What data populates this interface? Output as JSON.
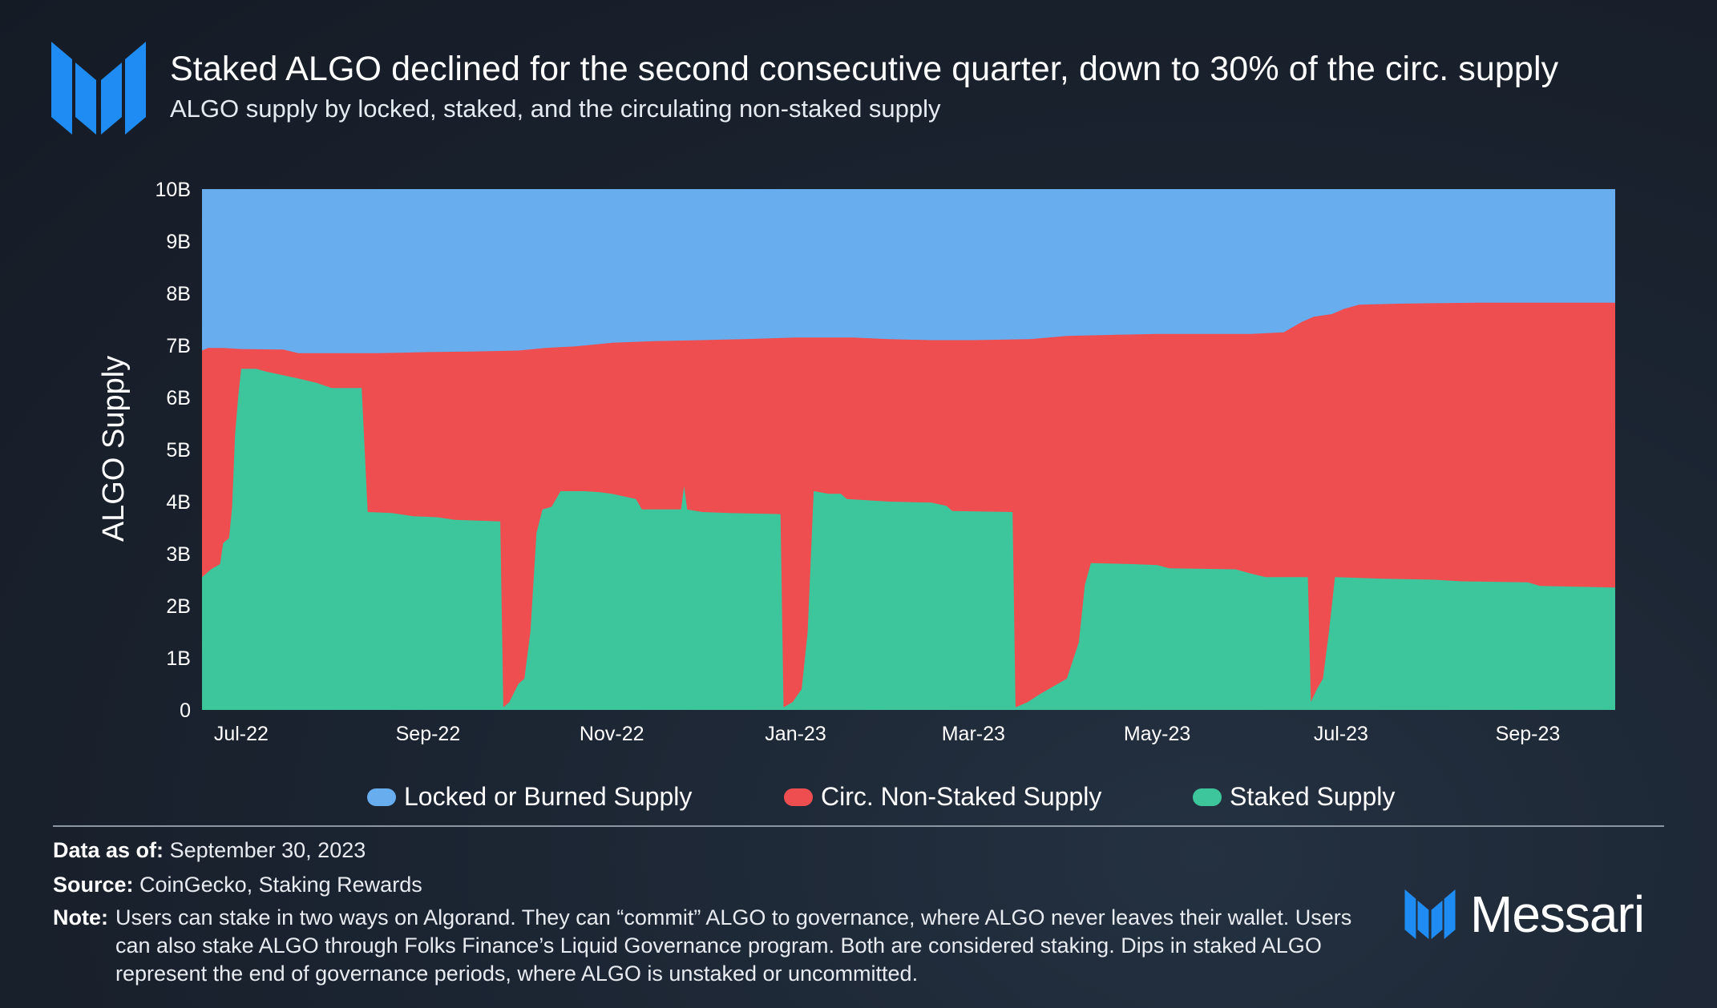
{
  "header": {
    "title": "Staked ALGO declined for the second consecutive quarter, down to 30% of the circ. supply",
    "subtitle": "ALGO supply by locked, staked, and the circulating non-staked supply"
  },
  "colors": {
    "locked": "#68adee",
    "circ_non_staked": "#ee4e50",
    "staked": "#3dc69c",
    "brand": "#1e8cf2"
  },
  "chart_data": {
    "type": "area",
    "stacked": true,
    "title": "Staked ALGO declined for the second consecutive quarter, down to 30% of the circ. supply",
    "subtitle": "ALGO supply by locked, staked, and the circulating non-staked supply",
    "ylabel": "ALGO Supply",
    "xlabel": "",
    "ylim": [
      0,
      10000000000
    ],
    "yticks": [
      0,
      1000000000,
      2000000000,
      3000000000,
      4000000000,
      5000000000,
      6000000000,
      7000000000,
      8000000000,
      9000000000,
      10000000000
    ],
    "ytick_labels": [
      "0",
      "1B",
      "2B",
      "3B",
      "4B",
      "5B",
      "6B",
      "7B",
      "8B",
      "9B",
      "10B"
    ],
    "xlim": [
      "2022-06-18",
      "2023-09-30"
    ],
    "xticks": [
      "2022-07-01",
      "2022-09-01",
      "2022-11-01",
      "2023-01-01",
      "2023-03-01",
      "2023-05-01",
      "2023-07-01",
      "2023-09-01"
    ],
    "xtick_labels": [
      "Jul-22",
      "Sep-22",
      "Nov-22",
      "Jan-23",
      "Mar-23",
      "May-23",
      "Jul-23",
      "Sep-23"
    ],
    "legend_position": "bottom",
    "grid": false,
    "series": [
      {
        "name": "Staked Supply",
        "color_key": "staked",
        "points": [
          [
            "2022-06-18",
            2.55
          ],
          [
            "2022-06-21",
            2.7
          ],
          [
            "2022-06-24",
            2.8
          ],
          [
            "2022-06-25",
            3.2
          ],
          [
            "2022-06-27",
            3.3
          ],
          [
            "2022-06-28",
            3.9
          ],
          [
            "2022-06-29",
            5.3
          ],
          [
            "2022-06-30",
            6.0
          ],
          [
            "2022-07-01",
            6.55
          ],
          [
            "2022-07-06",
            6.55
          ],
          [
            "2022-07-09",
            6.5
          ],
          [
            "2022-07-13",
            6.45
          ],
          [
            "2022-07-21",
            6.35
          ],
          [
            "2022-07-26",
            6.28
          ],
          [
            "2022-07-31",
            6.18
          ],
          [
            "2022-08-10",
            6.18
          ],
          [
            "2022-08-12",
            3.8
          ],
          [
            "2022-08-20",
            3.78
          ],
          [
            "2022-08-27",
            3.72
          ],
          [
            "2022-09-04",
            3.7
          ],
          [
            "2022-09-10",
            3.65
          ],
          [
            "2022-09-25",
            3.62
          ],
          [
            "2022-09-26",
            0.05
          ],
          [
            "2022-09-28",
            0.15
          ],
          [
            "2022-10-01",
            0.5
          ],
          [
            "2022-10-03",
            0.6
          ],
          [
            "2022-10-05",
            1.5
          ],
          [
            "2022-10-07",
            3.4
          ],
          [
            "2022-10-09",
            3.85
          ],
          [
            "2022-10-12",
            3.9
          ],
          [
            "2022-10-15",
            4.2
          ],
          [
            "2022-10-23",
            4.2
          ],
          [
            "2022-10-28",
            4.18
          ],
          [
            "2022-11-01",
            4.15
          ],
          [
            "2022-11-05",
            4.1
          ],
          [
            "2022-11-09",
            4.05
          ],
          [
            "2022-11-11",
            3.85
          ],
          [
            "2022-11-24",
            3.85
          ],
          [
            "2022-11-25",
            4.3
          ],
          [
            "2022-11-26",
            3.85
          ],
          [
            "2022-12-01",
            3.8
          ],
          [
            "2022-12-10",
            3.78
          ],
          [
            "2022-12-27",
            3.76
          ],
          [
            "2022-12-28",
            0.05
          ],
          [
            "2022-12-31",
            0.15
          ],
          [
            "2023-01-03",
            0.4
          ],
          [
            "2023-01-05",
            1.5
          ],
          [
            "2023-01-07",
            4.2
          ],
          [
            "2023-01-12",
            4.15
          ],
          [
            "2023-01-16",
            4.15
          ],
          [
            "2023-01-18",
            4.05
          ],
          [
            "2023-02-01",
            4.0
          ],
          [
            "2023-02-15",
            3.98
          ],
          [
            "2023-02-20",
            3.92
          ],
          [
            "2023-02-22",
            3.82
          ],
          [
            "2023-03-14",
            3.8
          ],
          [
            "2023-03-15",
            0.05
          ],
          [
            "2023-03-19",
            0.15
          ],
          [
            "2023-03-23",
            0.3
          ],
          [
            "2023-04-01",
            0.6
          ],
          [
            "2023-04-05",
            1.3
          ],
          [
            "2023-04-07",
            2.4
          ],
          [
            "2023-04-09",
            2.82
          ],
          [
            "2023-04-23",
            2.8
          ],
          [
            "2023-05-01",
            2.78
          ],
          [
            "2023-05-05",
            2.72
          ],
          [
            "2023-05-27",
            2.7
          ],
          [
            "2023-06-01",
            2.62
          ],
          [
            "2023-06-06",
            2.55
          ],
          [
            "2023-06-20",
            2.55
          ],
          [
            "2023-06-21",
            0.15
          ],
          [
            "2023-06-23",
            0.4
          ],
          [
            "2023-06-25",
            0.6
          ],
          [
            "2023-06-27",
            1.5
          ],
          [
            "2023-06-29",
            2.55
          ],
          [
            "2023-07-15",
            2.52
          ],
          [
            "2023-08-01",
            2.5
          ],
          [
            "2023-08-10",
            2.47
          ],
          [
            "2023-09-01",
            2.45
          ],
          [
            "2023-09-05",
            2.38
          ],
          [
            "2023-09-30",
            2.35
          ]
        ]
      },
      {
        "name": "Circ. Non-Staked Supply",
        "color_key": "circ_non_staked",
        "points_are_cumulative_top": true,
        "points": [
          [
            "2022-06-18",
            6.9
          ],
          [
            "2022-06-20",
            6.95
          ],
          [
            "2022-06-25",
            6.95
          ],
          [
            "2022-07-01",
            6.93
          ],
          [
            "2022-07-15",
            6.92
          ],
          [
            "2022-07-20",
            6.85
          ],
          [
            "2022-08-01",
            6.85
          ],
          [
            "2022-08-15",
            6.85
          ],
          [
            "2022-09-01",
            6.87
          ],
          [
            "2022-09-15",
            6.88
          ],
          [
            "2022-10-01",
            6.9
          ],
          [
            "2022-10-10",
            6.95
          ],
          [
            "2022-10-20",
            6.98
          ],
          [
            "2022-11-01",
            7.05
          ],
          [
            "2022-11-15",
            7.08
          ],
          [
            "2022-12-01",
            7.1
          ],
          [
            "2022-12-15",
            7.12
          ],
          [
            "2023-01-01",
            7.15
          ],
          [
            "2023-01-20",
            7.15
          ],
          [
            "2023-02-01",
            7.12
          ],
          [
            "2023-02-15",
            7.1
          ],
          [
            "2023-03-01",
            7.1
          ],
          [
            "2023-03-20",
            7.12
          ],
          [
            "2023-04-01",
            7.18
          ],
          [
            "2023-04-15",
            7.2
          ],
          [
            "2023-05-01",
            7.22
          ],
          [
            "2023-05-15",
            7.22
          ],
          [
            "2023-06-01",
            7.22
          ],
          [
            "2023-06-12",
            7.25
          ],
          [
            "2023-06-18",
            7.45
          ],
          [
            "2023-06-22",
            7.55
          ],
          [
            "2023-06-28",
            7.6
          ],
          [
            "2023-07-02",
            7.7
          ],
          [
            "2023-07-07",
            7.78
          ],
          [
            "2023-07-20",
            7.8
          ],
          [
            "2023-08-15",
            7.82
          ],
          [
            "2023-09-01",
            7.82
          ],
          [
            "2023-09-30",
            7.82
          ]
        ]
      },
      {
        "name": "Locked or Burned Supply",
        "color_key": "locked",
        "points_are_cumulative_top": true,
        "points": [
          [
            "2022-06-18",
            10.0
          ],
          [
            "2023-09-30",
            10.0
          ]
        ]
      }
    ],
    "units": "billions (B)"
  },
  "legend": {
    "locked": "Locked or Burned Supply",
    "circ": "Circ. Non-Staked Supply",
    "staked": "Staked Supply"
  },
  "footer": {
    "data_label": "Data as of:",
    "data_value": "September 30, 2023",
    "source_label": "Source:",
    "source_value": "CoinGecko, Staking Rewards",
    "note_label": "Note:",
    "note_text": "Users can stake in two ways on Algorand. They can “commit” ALGO to governance, where ALGO never leaves their wallet. Users can also stake ALGO through Folks Finance’s Liquid Governance program. Both are considered staking. Dips in staked ALGO represent the end of governance periods, where ALGO is unstaked or uncommitted."
  },
  "brand": {
    "name": "Messari",
    "icon": "messari-logo-icon"
  }
}
